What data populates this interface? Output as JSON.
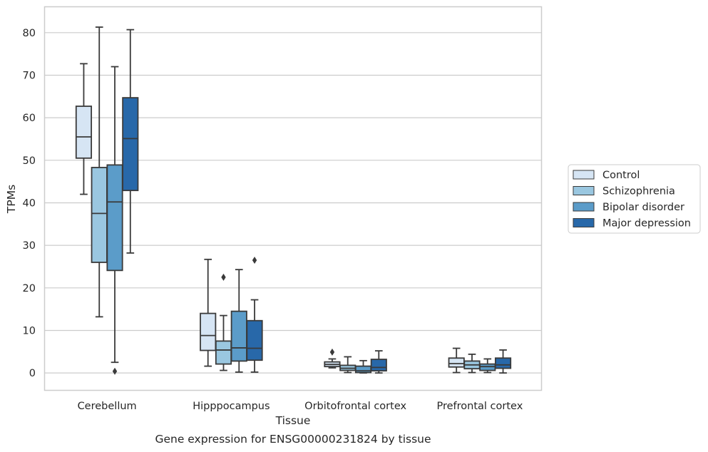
{
  "chart_data": {
    "type": "boxplot",
    "title": "",
    "caption": "Gene expression for ENSG00000231824 by tissue",
    "xlabel": "Tissue",
    "ylabel": "TPMs",
    "ylim": [
      -4,
      86
    ],
    "yticks": [
      0,
      10,
      20,
      30,
      40,
      50,
      60,
      70,
      80
    ],
    "grid": "horizontal",
    "legend_position": "right",
    "categories": [
      "Cerebellum",
      "Hipppocampus",
      "Orbitofrontal cortex",
      "Prefrontal cortex"
    ],
    "series": [
      {
        "name": "Control",
        "color": "#d6e5f4",
        "boxes": [
          {
            "whislo": 42,
            "q1": 50.5,
            "med": 55.5,
            "q3": 62.7,
            "whishi": 72.7,
            "fliers": []
          },
          {
            "whislo": 1.6,
            "q1": 5.3,
            "med": 8.8,
            "q3": 14,
            "whishi": 26.7,
            "fliers": []
          },
          {
            "whislo": 1.2,
            "q1": 1.5,
            "med": 2,
            "q3": 2.6,
            "whishi": 3.3,
            "fliers": [
              4.9
            ]
          },
          {
            "whislo": 0.1,
            "q1": 1.4,
            "med": 2.2,
            "q3": 3.5,
            "whishi": 5.8,
            "fliers": []
          }
        ]
      },
      {
        "name": "Schizophrenia",
        "color": "#9ac7e0",
        "boxes": [
          {
            "whislo": 13.2,
            "q1": 26,
            "med": 37.5,
            "q3": 48.3,
            "whishi": 81.3,
            "fliers": []
          },
          {
            "whislo": 0.6,
            "q1": 2.1,
            "med": 5.4,
            "q3": 7.5,
            "whishi": 13.5,
            "fliers": [
              22.5
            ]
          },
          {
            "whislo": 0.1,
            "q1": 0.6,
            "med": 1.1,
            "q3": 1.8,
            "whishi": 3.8,
            "fliers": []
          },
          {
            "whislo": 0.1,
            "q1": 1,
            "med": 1.9,
            "q3": 2.8,
            "whishi": 4.4,
            "fliers": []
          }
        ]
      },
      {
        "name": "Bipolar disorder",
        "color": "#5b9cc9",
        "boxes": [
          {
            "whislo": 2.5,
            "q1": 24.1,
            "med": 40.2,
            "q3": 48.9,
            "whishi": 72,
            "fliers": [
              0.4
            ]
          },
          {
            "whislo": 0.2,
            "q1": 2.8,
            "med": 5.9,
            "q3": 14.5,
            "whishi": 24.3,
            "fliers": []
          },
          {
            "whislo": 0,
            "q1": 0.1,
            "med": 0.5,
            "q3": 1.6,
            "whishi": 2.9,
            "fliers": []
          },
          {
            "whislo": 0.1,
            "q1": 0.6,
            "med": 1.5,
            "q3": 2.1,
            "whishi": 3.3,
            "fliers": []
          }
        ]
      },
      {
        "name": "Major depression",
        "color": "#2868a9",
        "boxes": [
          {
            "whislo": 28.2,
            "q1": 42.9,
            "med": 55.1,
            "q3": 64.7,
            "whishi": 80.7,
            "fliers": []
          },
          {
            "whislo": 0.2,
            "q1": 3,
            "med": 5.8,
            "q3": 12.3,
            "whishi": 17.2,
            "fliers": [
              26.5
            ]
          },
          {
            "whislo": 0,
            "q1": 0.5,
            "med": 1.3,
            "q3": 3.2,
            "whishi": 5.2,
            "fliers": []
          },
          {
            "whislo": 0,
            "q1": 1.1,
            "med": 1.9,
            "q3": 3.5,
            "whishi": 5.4,
            "fliers": []
          }
        ]
      }
    ]
  }
}
